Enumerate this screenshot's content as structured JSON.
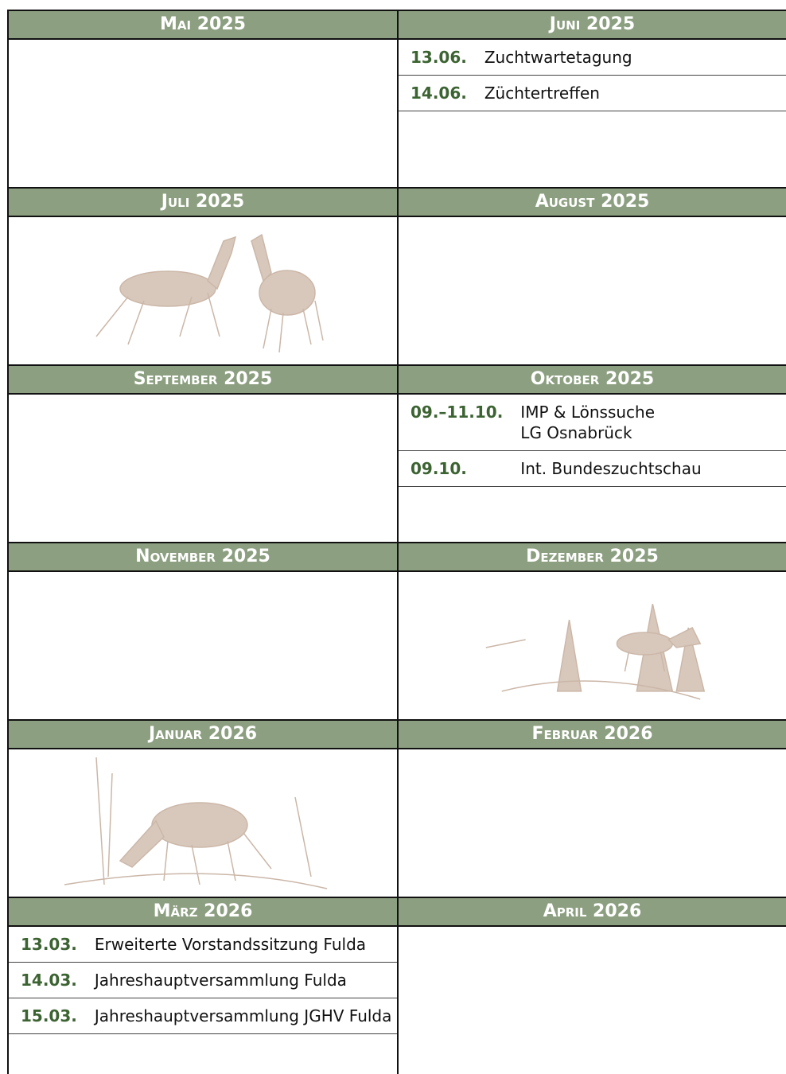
{
  "months": [
    {
      "title": "Mai 2025",
      "events": []
    },
    {
      "title": "Juni 2025",
      "events": [
        {
          "date": "13.06.",
          "lines": [
            "Zuchtwartetagung"
          ]
        },
        {
          "date": "14.06.",
          "lines": [
            "Züchtertreffen"
          ]
        }
      ]
    },
    {
      "title": "Juli 2025",
      "events": []
    },
    {
      "title": "August 2025",
      "events": []
    },
    {
      "title": "September 2025",
      "events": []
    },
    {
      "title": "Oktober 2025",
      "events": [
        {
          "date": "09.–11.10.",
          "lines": [
            "IMP & Lönssuche",
            "LG Osnabrück"
          ]
        },
        {
          "date": "09.10.",
          "lines": [
            "Int. Bundeszuchtschau"
          ]
        }
      ]
    },
    {
      "title": "November 2025",
      "events": []
    },
    {
      "title": "Dezember 2025",
      "events": []
    },
    {
      "title": "Januar 2026",
      "events": []
    },
    {
      "title": "Februar 2026",
      "events": []
    },
    {
      "title": "März 2026",
      "events": [
        {
          "date": "13.03.",
          "lines": [
            "Erweiterte Vorstandssitzung Fulda"
          ]
        },
        {
          "date": "14.03.",
          "lines": [
            "Jahreshauptversammlung Fulda"
          ]
        },
        {
          "date": "15.03.",
          "lines": [
            "Jahreshauptversammlung JGHV Fulda"
          ]
        }
      ]
    },
    {
      "title": "April 2026",
      "events": []
    }
  ]
}
